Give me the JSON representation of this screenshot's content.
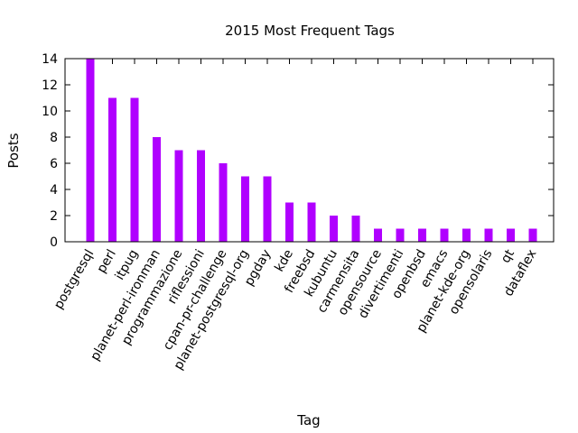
{
  "chart_data": {
    "type": "bar",
    "title": "2015 Most Frequent Tags",
    "xlabel": "Tag",
    "ylabel": "Posts",
    "ylim": [
      0,
      14
    ],
    "yticks": [
      0,
      2,
      4,
      6,
      8,
      10,
      12,
      14
    ],
    "grid": false,
    "legend": "none",
    "bar_color": "#b000ff",
    "categories": [
      "postgresql",
      "perl",
      "itpug",
      "planet-perl-ironman",
      "programmazione",
      "riflessioni",
      "cpan-pr-challenge",
      "planet-postgresql-org",
      "pgday",
      "kde",
      "freebsd",
      "kubuntu",
      "carmensita",
      "opensource",
      "divertimenti",
      "openbsd",
      "emacs",
      "planet-kde-org",
      "opensolaris",
      "qt",
      "dataflex"
    ],
    "values": [
      14,
      11,
      11,
      8,
      7,
      7,
      6,
      5,
      5,
      3,
      3,
      2,
      2,
      1,
      1,
      1,
      1,
      1,
      1,
      1,
      1
    ]
  }
}
